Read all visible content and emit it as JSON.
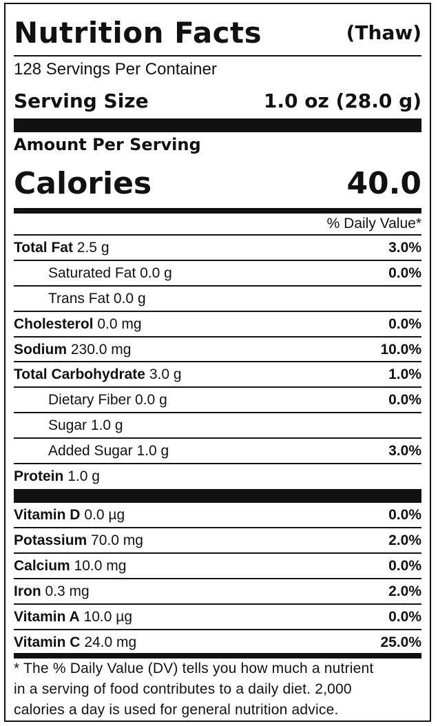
{
  "header": {
    "title": "Nutrition Facts",
    "subtitle": "(Thaw)"
  },
  "servings_per_container": "128 Servings Per Container",
  "serving_size": {
    "label": "Serving Size",
    "value": "1.0 oz (28.0 g)"
  },
  "amount_per_serving": "Amount Per Serving",
  "calories": {
    "label": "Calories",
    "value": "40.0"
  },
  "daily_value_header": "% Daily Value*",
  "nutrients": [
    {
      "name": "Total Fat",
      "amount": "2.5 g",
      "dv": "3.0%"
    },
    {
      "name": "Saturated Fat",
      "amount": "0.0 g",
      "dv": "0.0%"
    },
    {
      "name": "Trans Fat",
      "amount": "0.0 g",
      "dv": ""
    },
    {
      "name": "Cholesterol",
      "amount": "0.0 mg",
      "dv": "0.0%"
    },
    {
      "name": "Sodium",
      "amount": "230.0 mg",
      "dv": "10.0%"
    },
    {
      "name": "Total Carbohydrate",
      "amount": "3.0 g",
      "dv": "1.0%"
    },
    {
      "name": "Dietary Fiber",
      "amount": "0.0 g",
      "dv": "0.0%"
    },
    {
      "name": "Sugar",
      "amount": "1.0 g",
      "dv": ""
    },
    {
      "name": "Added Sugar",
      "amount": "1.0 g",
      "dv": "3.0%"
    },
    {
      "name": "Protein",
      "amount": "1.0 g",
      "dv": ""
    }
  ],
  "vitamins": [
    {
      "name": "Vitamin D",
      "amount": "0.0 µg",
      "dv": "0.0%"
    },
    {
      "name": "Potassium",
      "amount": "70.0 mg",
      "dv": "2.0%"
    },
    {
      "name": "Calcium",
      "amount": "10.0 mg",
      "dv": "0.0%"
    },
    {
      "name": "Iron",
      "amount": "0.3 mg",
      "dv": "2.0%"
    },
    {
      "name": "Vitamin A",
      "amount": "10.0 µg",
      "dv": "0.0%"
    },
    {
      "name": "Vitamin C",
      "amount": "24.0 mg",
      "dv": "25.0%"
    }
  ],
  "footnote": [
    "* The % Daily Value (DV) tells you how much a nutrient",
    "in a serving of food contributes to a daily diet. 2,000",
    "calories a day is used for general nutrition advice."
  ]
}
